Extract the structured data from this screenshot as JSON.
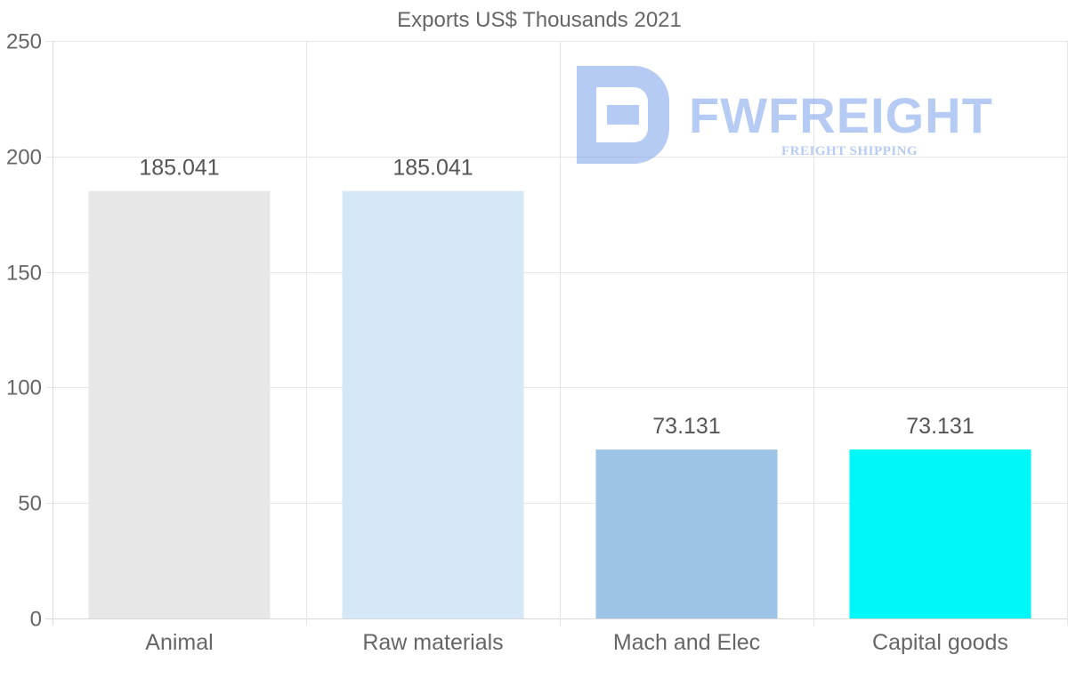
{
  "chart_data": {
    "type": "bar",
    "title": "Exports US$ Thousands 2021",
    "categories": [
      "Animal",
      "Raw materials",
      "Mach and Elec",
      "Capital goods"
    ],
    "values": [
      185.041,
      185.041,
      73.131,
      73.131
    ],
    "data_labels": [
      "185.041",
      "185.041",
      "73.131",
      "73.131"
    ],
    "colors": [
      "#e7e7e7",
      "#d6e7f8",
      "#9dc3e6",
      "#00f7f7"
    ],
    "xlabel": "",
    "ylabel": "",
    "ylim": [
      0,
      250
    ],
    "yticks": [
      0,
      50,
      100,
      150,
      200,
      250
    ],
    "ytick_labels": [
      "0",
      "50",
      "100",
      "150",
      "200",
      "250"
    ],
    "grid": true,
    "legend": "none"
  },
  "watermark": {
    "brand": "FWFREIGHT",
    "tagline": "FREIGHT SHIPPING",
    "color": "#6f98e8"
  }
}
